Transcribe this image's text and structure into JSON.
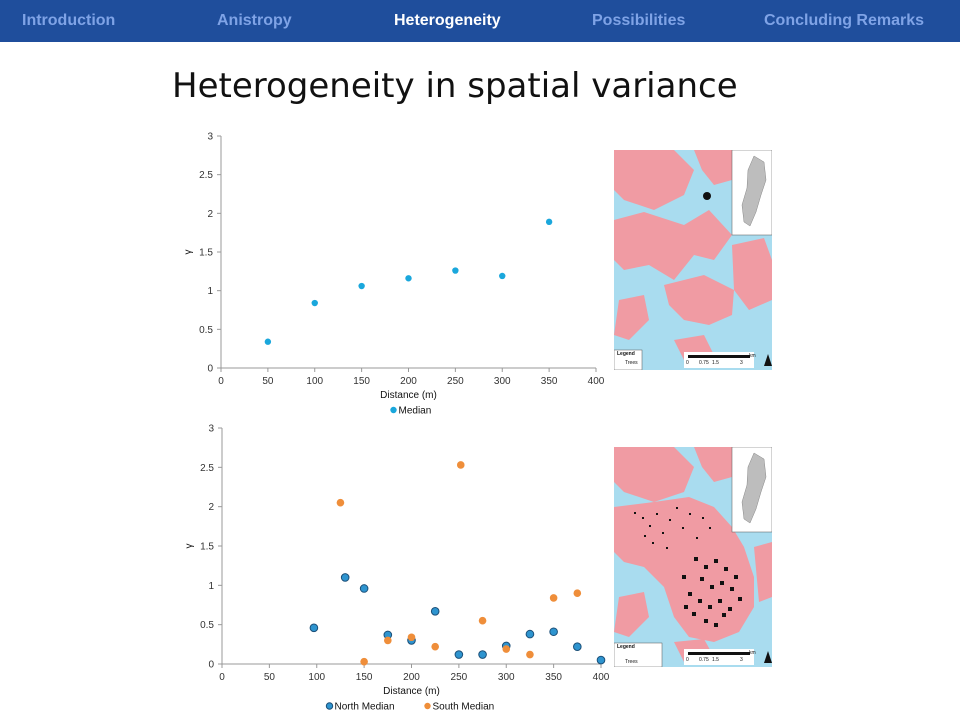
{
  "nav": {
    "items": [
      {
        "label": "Introduction",
        "active": false
      },
      {
        "label": "Anistropy",
        "active": false
      },
      {
        "label": "Heterogeneity",
        "active": true
      },
      {
        "label": "Possibilities",
        "active": false
      },
      {
        "label": "Concluding Remarks",
        "active": false
      }
    ],
    "colors": {
      "bar": "#1f4e9c",
      "active": "#ffffff",
      "inactive": "#7fa3e6"
    }
  },
  "slide": {
    "title": "Heterogeneity in spatial variance"
  },
  "chart_data": [
    {
      "type": "scatter",
      "xlabel": "Distance (m)",
      "ylabel": "γ",
      "xlim": [
        0,
        400
      ],
      "ylim": [
        0,
        3
      ],
      "x_ticks": [
        "0",
        "50",
        "100",
        "150",
        "200",
        "250",
        "300",
        "350",
        "400"
      ],
      "y_ticks": [
        "0",
        "0.5",
        "1",
        "1.5",
        "2",
        "2.5",
        "3"
      ],
      "legend_position": "bottom",
      "series": [
        {
          "name": "Median",
          "color": "#1aa7dc",
          "x": [
            50,
            100,
            150,
            200,
            250,
            300,
            350
          ],
          "y": [
            0.34,
            0.84,
            1.06,
            1.16,
            1.26,
            1.19,
            1.89
          ]
        }
      ]
    },
    {
      "type": "scatter",
      "xlabel": "Distance (m)",
      "ylabel": "γ",
      "xlim": [
        0,
        400
      ],
      "ylim": [
        0,
        3
      ],
      "x_ticks": [
        "0",
        "50",
        "100",
        "150",
        "200",
        "250",
        "300",
        "350",
        "400"
      ],
      "y_ticks": [
        "0",
        "0.5",
        "1",
        "1.5",
        "2",
        "2.5",
        "3"
      ],
      "legend_position": "bottom",
      "series": [
        {
          "name": "North Median",
          "color": "#2e94cf",
          "x": [
            97,
            130,
            150,
            175,
            200,
            225,
            250,
            275,
            300,
            325,
            350,
            375,
            400
          ],
          "y": [
            0.46,
            1.1,
            0.96,
            0.37,
            0.3,
            0.67,
            0.12,
            0.12,
            0.23,
            0.38,
            0.41,
            0.22,
            0.05
          ]
        },
        {
          "name": "South Median",
          "color": "#ef8e3a",
          "x": [
            125,
            150,
            175,
            200,
            225,
            252,
            275,
            300,
            325,
            350,
            375
          ],
          "y": [
            2.05,
            0.03,
            0.3,
            0.34,
            0.22,
            2.53,
            0.55,
            0.19,
            0.12,
            0.84,
            0.9
          ]
        }
      ]
    }
  ],
  "maps": [
    {
      "scale_labels": [
        "0",
        "0.75",
        "1.5",
        "3"
      ],
      "scale_unit": "km",
      "legend_title": "Legend",
      "legend_text": "Trees"
    },
    {
      "scale_labels": [
        "0",
        "0.75",
        "1.5",
        "3"
      ],
      "scale_unit": "km",
      "legend_title": "Legend",
      "legend_text": "Trees"
    }
  ]
}
